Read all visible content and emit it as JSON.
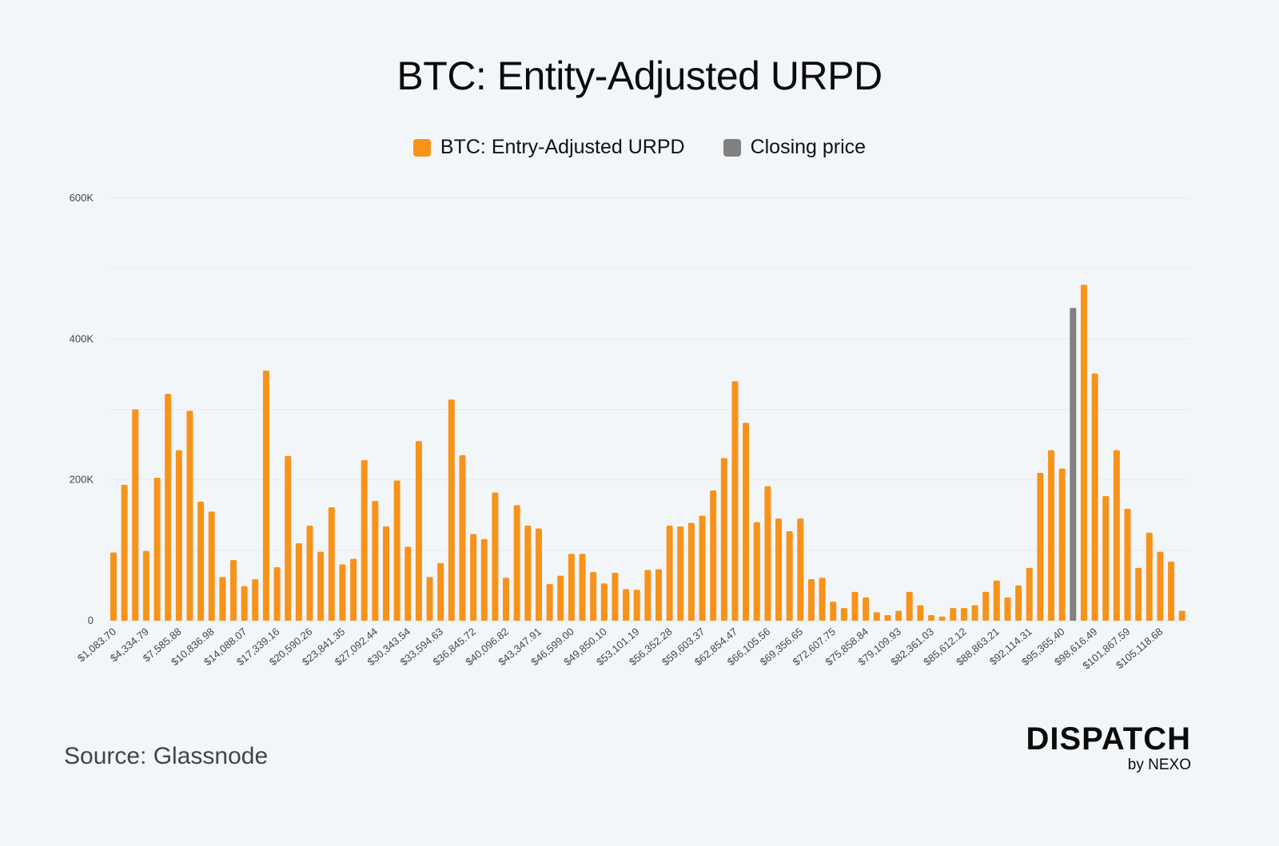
{
  "chart_data": {
    "type": "bar",
    "title": "BTC: Entity-Adjusted URPD",
    "xlabel": "",
    "ylabel": "",
    "ylim": [
      0,
      600000
    ],
    "yticks": [
      0,
      200000,
      400000,
      600000
    ],
    "ytick_labels": [
      "0",
      "200K",
      "400K",
      "600K"
    ],
    "grid": true,
    "legend_position": "top-center",
    "legend": [
      {
        "label": "BTC: Entry-Adjusted URPD",
        "color": "#f7931a"
      },
      {
        "label": "Closing price",
        "color": "#808080"
      }
    ],
    "bucket_width": 1083.7,
    "tick_every": 3,
    "tick_labels": [
      "$1,083.70",
      "$4,334.79",
      "$7,585.88",
      "$10,836.98",
      "$14,088.07",
      "$17,339.16",
      "$20,590.26",
      "$23,841.35",
      "$27,092.44",
      "$30,343.54",
      "$33,594.63",
      "$36,845.72",
      "$40,096.82",
      "$43,347.91",
      "$46,599.00",
      "$49,850.10",
      "$53,101.19",
      "$56,352.28",
      "$59,603.37",
      "$62,854.47",
      "$66,105.56",
      "$69,356.65",
      "$72,607.75",
      "$75,858.84",
      "$79,109.93",
      "$82,361.03",
      "$85,612.12",
      "$88,863.21",
      "$92,114.31",
      "$95,365.40",
      "$98,616.49",
      "$101,867.59",
      "$105,118.68"
    ],
    "closing_price_index": 88,
    "values": [
      97000,
      193000,
      300000,
      99000,
      203000,
      322000,
      242000,
      298000,
      169000,
      155000,
      62000,
      86000,
      49000,
      59000,
      355000,
      76000,
      234000,
      110000,
      135000,
      98000,
      161000,
      80000,
      88000,
      228000,
      170000,
      134000,
      199000,
      105000,
      255000,
      62000,
      82000,
      314000,
      235000,
      123000,
      116000,
      182000,
      61000,
      164000,
      135000,
      131000,
      52000,
      64000,
      95000,
      95000,
      69000,
      53000,
      68000,
      45000,
      44000,
      72000,
      73000,
      135000,
      134000,
      139000,
      149000,
      185000,
      231000,
      340000,
      281000,
      140000,
      191000,
      145000,
      127000,
      145000,
      59000,
      61000,
      27000,
      18000,
      41000,
      33000,
      12000,
      8000,
      14000,
      41000,
      22000,
      8000,
      6000,
      18000,
      18000,
      22000,
      41000,
      57000,
      33000,
      50000,
      75000,
      210000,
      242000,
      216000,
      444000,
      477000,
      351000,
      177000,
      242000,
      159000,
      75000,
      125000,
      98000,
      84000,
      14000
    ]
  },
  "footer": {
    "source": "Source: Glassnode",
    "logo_main": "DISPATCH",
    "logo_sub": "by NEXO"
  }
}
